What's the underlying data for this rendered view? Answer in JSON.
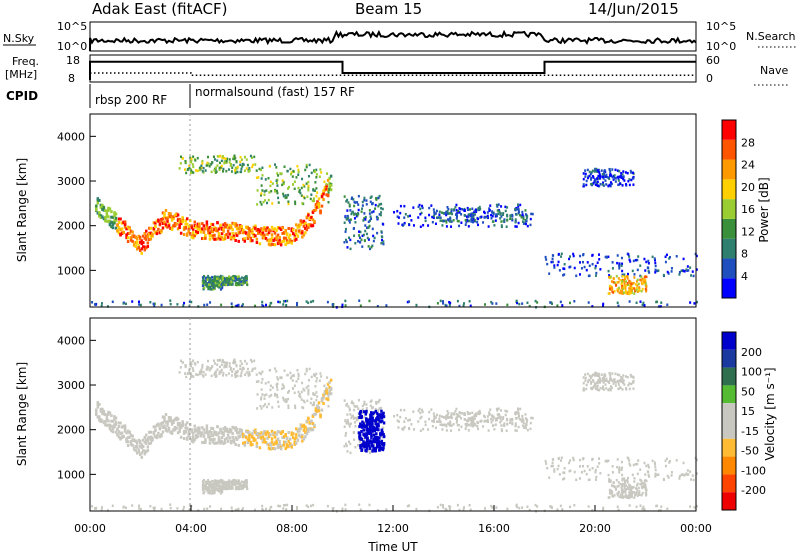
{
  "header": {
    "title": "Adak East (fitACF)",
    "beam": "Beam 15",
    "date": "14/Jun/2015"
  },
  "panels": {
    "nsky_label": "N.Sky",
    "nsearch_label": "N.Search",
    "nsky_ticks": [
      "10^5",
      "10^0"
    ],
    "nsearch_ticks": [
      "10^5",
      "10^0"
    ],
    "freq_label": "Freq.",
    "freq_unit": "[MHz]",
    "freq_ticks": [
      "18",
      "8"
    ],
    "nave_label": "Nave",
    "nave_ticks": [
      "60",
      "0"
    ],
    "cpid_label": "CPID",
    "cpid_segments": [
      {
        "label": "rbsp 200 RF",
        "start_hour": 0,
        "end_hour": 4
      },
      {
        "label": "normalsound (fast) 157 RF",
        "start_hour": 4,
        "end_hour": 24
      }
    ]
  },
  "colors": {
    "power_scale": [
      "#0000ff",
      "#1f4fbf",
      "#2f7f6f",
      "#3a8f3a",
      "#9acd32",
      "#ffd000",
      "#ff9900",
      "#ff5500",
      "#ff0000"
    ],
    "velocity_scale": [
      "#0000cc",
      "#1a3aa0",
      "#2f6f4f",
      "#55bb33",
      "#c8c8c0",
      "#c8c8c0",
      "#ffbb33",
      "#ff8800",
      "#ff4400",
      "#ee0000"
    ]
  },
  "chart_data": [
    {
      "type": "heatmap",
      "name": "power",
      "xlabel": "",
      "ylabel": "Slant Range [km]",
      "xlim": [
        0,
        24
      ],
      "ylim": [
        180,
        4500
      ],
      "yticks": [
        "1000",
        "2000",
        "3000",
        "4000"
      ],
      "colorbar_label": "Power [dB]",
      "colorbar_ticks": [
        "4",
        "8",
        "12",
        "16",
        "20",
        "24",
        "28"
      ],
      "features": [
        {
          "desc": "arc",
          "x": [
            0.2,
            1.0,
            2.0,
            2.6,
            3.0,
            4.0,
            5.5,
            7.0,
            8.0,
            8.8,
            9.5
          ],
          "y": [
            2500,
            2100,
            1600,
            2000,
            2200,
            1950,
            1900,
            1800,
            1800,
            2200,
            3000
          ]
        }
      ]
    },
    {
      "type": "heatmap",
      "name": "velocity",
      "xlabel": "Time UT",
      "ylabel": "Slant Range [km]",
      "xlim": [
        0,
        24
      ],
      "ylim": [
        180,
        4500
      ],
      "xticks": [
        "00:00",
        "04:00",
        "08:00",
        "12:00",
        "16:00",
        "20:00",
        "00:00"
      ],
      "yticks": [
        "1000",
        "2000",
        "3000",
        "4000"
      ],
      "colorbar_label": "Velocity [m s⁻¹]",
      "colorbar_ticks": [
        "200",
        "100",
        "50",
        "15",
        "-15",
        "-50",
        "-100",
        "-200"
      ]
    }
  ]
}
